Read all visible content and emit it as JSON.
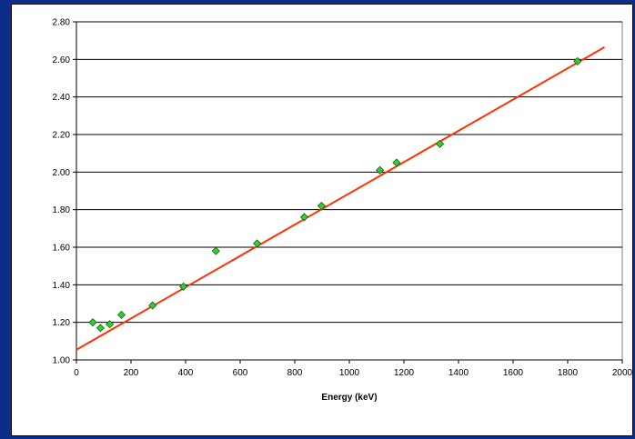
{
  "chart_data": {
    "type": "scatter",
    "title": "",
    "xlabel": "Energy (keV)",
    "ylabel": "",
    "xlim": [
      0,
      2000
    ],
    "ylim": [
      1.0,
      2.8
    ],
    "x_ticks": [
      "0",
      "200",
      "400",
      "600",
      "800",
      "1000",
      "1200",
      "1400",
      "1600",
      "1800",
      "2000"
    ],
    "x_tick_values": [
      0,
      200,
      400,
      600,
      800,
      1000,
      1200,
      1400,
      1600,
      1800,
      2000
    ],
    "y_ticks": [
      "1.00",
      "1.20",
      "1.40",
      "1.60",
      "1.80",
      "2.00",
      "2.20",
      "2.40",
      "2.60",
      "2.80"
    ],
    "y_tick_values": [
      1.0,
      1.2,
      1.4,
      1.6,
      1.8,
      2.0,
      2.2,
      2.4,
      2.6,
      2.8
    ],
    "grid": "horizontal",
    "legend": "none",
    "series": [
      {
        "type": "scatter",
        "marker": "diamond",
        "color": "#33cc33",
        "points": [
          {
            "x": 60,
            "y": 1.2
          },
          {
            "x": 88,
            "y": 1.17
          },
          {
            "x": 122,
            "y": 1.19
          },
          {
            "x": 165,
            "y": 1.24
          },
          {
            "x": 279,
            "y": 1.29
          },
          {
            "x": 392,
            "y": 1.39
          },
          {
            "x": 511,
            "y": 1.58
          },
          {
            "x": 662,
            "y": 1.62
          },
          {
            "x": 835,
            "y": 1.76
          },
          {
            "x": 898,
            "y": 1.82
          },
          {
            "x": 1112,
            "y": 2.01
          },
          {
            "x": 1173,
            "y": 2.05
          },
          {
            "x": 1332,
            "y": 2.15
          },
          {
            "x": 1836,
            "y": 2.59
          }
        ]
      },
      {
        "type": "line",
        "color": "#ff3300",
        "points": [
          {
            "x": -5,
            "y": 1.05
          },
          {
            "x": 1935,
            "y": 2.665
          }
        ]
      }
    ]
  }
}
